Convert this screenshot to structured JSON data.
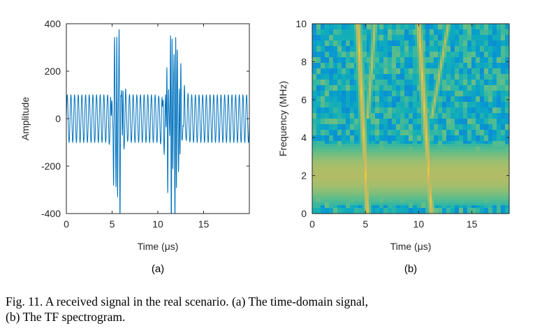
{
  "chart_data": [
    {
      "type": "line",
      "panel": "(a)",
      "title": "",
      "xlabel": "Time (μs)",
      "ylabel": "Amplitude",
      "xlim": [
        0,
        20
      ],
      "ylim": [
        -400,
        400
      ],
      "xticks": [
        0,
        5,
        10,
        15
      ],
      "yticks": [
        400,
        200,
        0,
        -200,
        -400
      ],
      "xtick_labels": [
        "0",
        "5",
        "10",
        "15"
      ],
      "ytick_labels": [
        "400",
        "200",
        "0",
        "-200",
        "-400"
      ],
      "grid": false,
      "series": [
        {
          "name": "received signal",
          "color": "#0072BD",
          "baseline_amplitude": 100,
          "cycles_per_us": 2.5,
          "bursts": [
            {
              "center_us": 5.6,
              "width_us": 0.9,
              "peak": 400
            },
            {
              "center_us": 11.7,
              "width_us": 1.3,
              "peak": 400
            }
          ]
        }
      ]
    },
    {
      "type": "heatmap",
      "panel": "(b)",
      "title": "",
      "xlabel": "Time (μs)",
      "ylabel": "Frequency (MHz)",
      "xlim": [
        0,
        18.5
      ],
      "ylim": [
        0,
        10
      ],
      "xticks": [
        0,
        5,
        10,
        15
      ],
      "yticks": [
        10,
        8,
        6,
        4,
        2,
        0
      ],
      "xtick_labels": [
        "0",
        "5",
        "10",
        "15"
      ],
      "ytick_labels": [
        "10",
        "8",
        "6",
        "4",
        "2",
        "0"
      ],
      "colormap": "parula",
      "features": {
        "horizontal_band": {
          "f_low_mhz": 0.8,
          "f_high_mhz": 3.3,
          "intensity": 0.82
        },
        "ridges": [
          {
            "time_at_0mhz_us": 5.2,
            "time_at_10mhz_us": 4.3,
            "extra_branch_at_10mhz_us": 5.9
          },
          {
            "time_at_0mhz_us": 11.2,
            "time_at_10mhz_us": 10.0,
            "extra_branch_at_10mhz_us": 12.8
          }
        ]
      }
    }
  ],
  "labels": {
    "sub_a": "(a)",
    "sub_b": "(b)"
  },
  "caption": {
    "line1": "Fig. 11.  A received signal in the real scenario. (a) The time-domain signal,",
    "line2": "(b) The TF spectrogram."
  },
  "colors": {
    "line": "#0072BD",
    "axis": "#262626"
  }
}
